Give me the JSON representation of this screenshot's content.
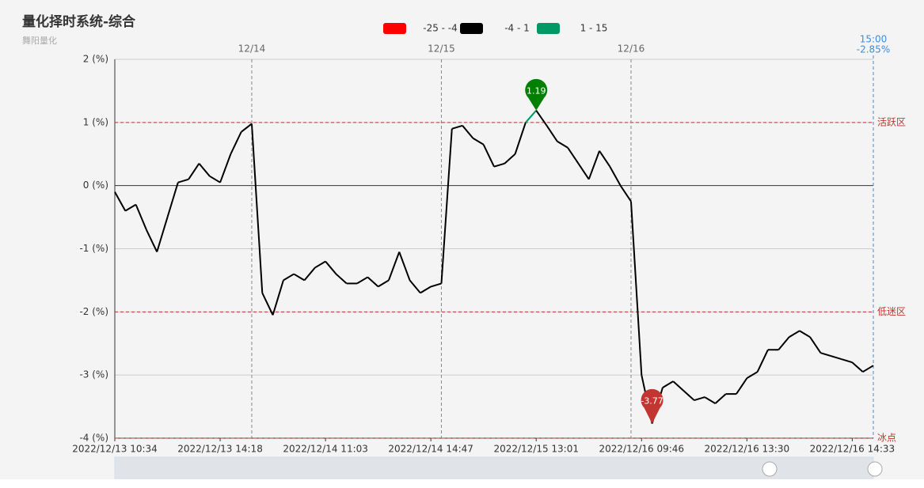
{
  "chart_data": {
    "type": "line",
    "title": "量化择时系统-综合",
    "subtitle": "舞阳量化",
    "categories": [
      "2022/12/13 10:34",
      null,
      null,
      null,
      null,
      null,
      null,
      null,
      null,
      null,
      "2022/12/13 14:18",
      null,
      null,
      null,
      null,
      null,
      null,
      null,
      null,
      null,
      "2022/12/14 11:03",
      null,
      null,
      null,
      null,
      null,
      null,
      null,
      null,
      null,
      "2022/12/14 14:47",
      null,
      null,
      null,
      null,
      null,
      null,
      null,
      null,
      null,
      "2022/12/15 13:01",
      null,
      null,
      null,
      null,
      null,
      null,
      null,
      null,
      null,
      "2022/12/16 09:46",
      null,
      null,
      null,
      null,
      null,
      null,
      null,
      null,
      null,
      "2022/12/16 13:30",
      null,
      null,
      null,
      null,
      null,
      null,
      null,
      null,
      null,
      "2022/12/16 14:33",
      null,
      null
    ],
    "series": [
      {
        "values": [
          -0.1,
          -0.4,
          -0.3,
          -0.7,
          -1.05,
          -0.5,
          0.05,
          0.1,
          0.35,
          0.15,
          0.05,
          0.5,
          0.85,
          0.98,
          -1.7,
          -2.05,
          -1.5,
          -1.4,
          -1.5,
          -1.3,
          -1.2,
          -1.4,
          -1.55,
          -1.55,
          -1.45,
          -1.6,
          -1.5,
          -1.05,
          -1.5,
          -1.7,
          -1.6,
          -1.55,
          0.9,
          0.95,
          0.75,
          0.65,
          0.3,
          0.35,
          0.5,
          1.0,
          1.19,
          0.95,
          0.7,
          0.6,
          0.35,
          0.1,
          0.55,
          0.3,
          0.0,
          -0.25,
          -3.0,
          -3.77,
          -3.2,
          -3.1,
          -3.25,
          -3.4,
          -3.35,
          -3.45,
          -3.3,
          -3.3,
          -3.05,
          -2.95,
          -2.6,
          -2.6,
          -2.4,
          -2.3,
          -2.4,
          -2.65,
          -2.7,
          -2.75,
          -2.8,
          -2.95,
          -2.85
        ]
      }
    ],
    "pieces": [
      {
        "min": -25,
        "max": -4,
        "label": "-25 - -4",
        "color": "#ff0000"
      },
      {
        "min": -4,
        "max": 1,
        "label": "-4 - 1",
        "color": "#000000"
      },
      {
        "min": 1,
        "max": 15,
        "label": "1 - 15",
        "color": "#009966"
      }
    ],
    "ylim": [
      -4,
      2
    ],
    "yticks": [
      {
        "value": -4,
        "label": "-4 (%)"
      },
      {
        "value": -3,
        "label": "-3 (%)"
      },
      {
        "value": -2,
        "label": "-2 (%)"
      },
      {
        "value": -1,
        "label": "-1 (%)"
      },
      {
        "value": 0,
        "label": "0 (%)"
      },
      {
        "value": 1,
        "label": "1 (%)"
      },
      {
        "value": 2,
        "label": "2 (%)"
      }
    ],
    "grid": true,
    "hlines": [
      {
        "value": 1,
        "label": "活跃区"
      },
      {
        "value": -2,
        "label": "低迷区"
      },
      {
        "value": -4,
        "label": "冰点"
      }
    ],
    "day_marks": [
      {
        "at": 13,
        "label": "12/14"
      },
      {
        "at": 31,
        "label": "12/15"
      },
      {
        "at": 49,
        "label": "12/16"
      }
    ],
    "end_mark": {
      "time": "15:00",
      "value": -2.85,
      "value_label": "-2.85%"
    },
    "max_point": {
      "value": 1.19,
      "at": 40
    },
    "min_point": {
      "value": -3.77,
      "at": 51
    }
  }
}
